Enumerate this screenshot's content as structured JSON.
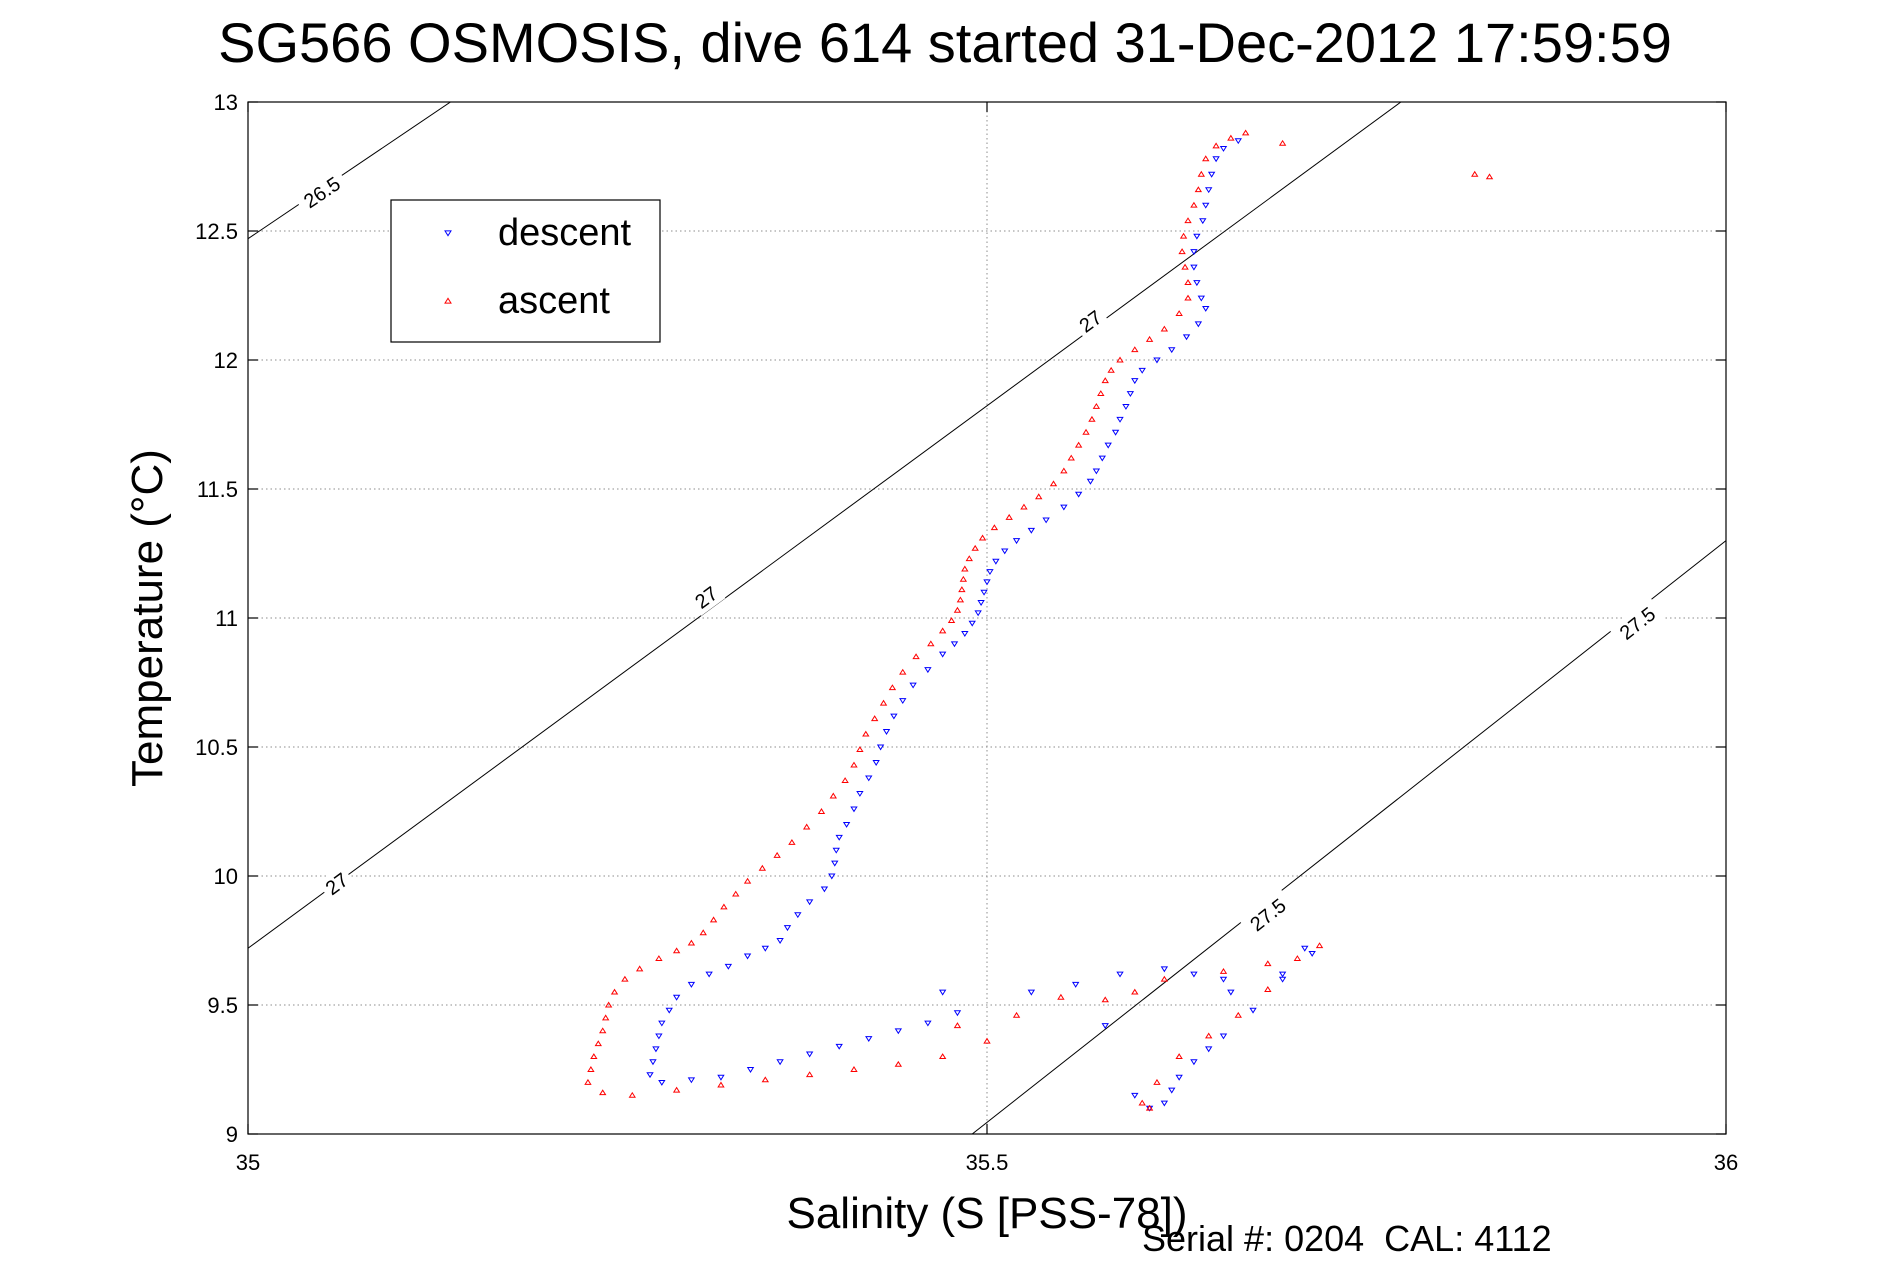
{
  "chart_data": {
    "type": "scatter",
    "title": "SG566 OSMOSIS, dive 614 started 31-Dec-2012 17:59:59",
    "xlabel": "Salinity (S [PSS-78])",
    "ylabel": "Temperature (°C)",
    "xlim": [
      35,
      36
    ],
    "ylim": [
      9,
      13
    ],
    "xticks": [
      35,
      35.5,
      36
    ],
    "xtick_labels": [
      "35",
      "35.5",
      "36"
    ],
    "yticks": [
      9,
      9.5,
      10,
      10.5,
      11,
      11.5,
      12,
      12.5,
      13
    ],
    "ytick_labels": [
      "9",
      "9.5",
      "10",
      "10.5",
      "11",
      "11.5",
      "12",
      "12.5",
      "13"
    ],
    "grid": true,
    "legend_position": "top-left",
    "legend": [
      {
        "label": "descent",
        "marker": "triangle-down",
        "color": "#0000ff"
      },
      {
        "label": "ascent",
        "marker": "triangle-up",
        "color": "#ff0000"
      }
    ],
    "contours": [
      {
        "label": "26.5",
        "points": [
          [
            35.0,
            12.47
          ],
          [
            35.137,
            13.0
          ]
        ],
        "label_positions": [
          [
            35.05,
            12.65
          ]
        ]
      },
      {
        "label": "27",
        "points": [
          [
            35.0,
            9.72
          ],
          [
            35.78,
            13.0
          ]
        ],
        "label_positions": [
          [
            35.06,
            9.97
          ],
          [
            35.31,
            11.08
          ],
          [
            35.57,
            12.15
          ]
        ]
      },
      {
        "label": "27.5",
        "points": [
          [
            35.49,
            9.0
          ],
          [
            36.0,
            11.3
          ]
        ],
        "label_positions": [
          [
            35.69,
            9.85
          ],
          [
            35.94,
            10.98
          ]
        ]
      }
    ],
    "series": [
      {
        "name": "descent",
        "color": "#0000ff",
        "marker": "triangle-down",
        "points": [
          [
            35.67,
            12.85
          ],
          [
            35.66,
            12.82
          ],
          [
            35.655,
            12.78
          ],
          [
            35.652,
            12.72
          ],
          [
            35.65,
            12.66
          ],
          [
            35.648,
            12.6
          ],
          [
            35.646,
            12.54
          ],
          [
            35.642,
            12.48
          ],
          [
            35.64,
            12.42
          ],
          [
            35.64,
            12.36
          ],
          [
            35.642,
            12.3
          ],
          [
            35.645,
            12.24
          ],
          [
            35.648,
            12.2
          ],
          [
            35.643,
            12.14
          ],
          [
            35.635,
            12.09
          ],
          [
            35.625,
            12.04
          ],
          [
            35.615,
            12.0
          ],
          [
            35.605,
            11.96
          ],
          [
            35.6,
            11.92
          ],
          [
            35.597,
            11.87
          ],
          [
            35.594,
            11.82
          ],
          [
            35.59,
            11.77
          ],
          [
            35.587,
            11.72
          ],
          [
            35.582,
            11.67
          ],
          [
            35.578,
            11.62
          ],
          [
            35.574,
            11.57
          ],
          [
            35.57,
            11.53
          ],
          [
            35.562,
            11.48
          ],
          [
            35.552,
            11.43
          ],
          [
            35.54,
            11.38
          ],
          [
            35.53,
            11.34
          ],
          [
            35.52,
            11.3
          ],
          [
            35.512,
            11.26
          ],
          [
            35.506,
            11.22
          ],
          [
            35.502,
            11.18
          ],
          [
            35.5,
            11.14
          ],
          [
            35.498,
            11.1
          ],
          [
            35.496,
            11.06
          ],
          [
            35.494,
            11.02
          ],
          [
            35.49,
            10.98
          ],
          [
            35.485,
            10.94
          ],
          [
            35.478,
            10.9
          ],
          [
            35.47,
            10.86
          ],
          [
            35.46,
            10.8
          ],
          [
            35.45,
            10.74
          ],
          [
            35.443,
            10.68
          ],
          [
            35.437,
            10.62
          ],
          [
            35.432,
            10.56
          ],
          [
            35.428,
            10.5
          ],
          [
            35.425,
            10.44
          ],
          [
            35.42,
            10.38
          ],
          [
            35.414,
            10.32
          ],
          [
            35.41,
            10.26
          ],
          [
            35.405,
            10.2
          ],
          [
            35.4,
            10.15
          ],
          [
            35.398,
            10.1
          ],
          [
            35.397,
            10.05
          ],
          [
            35.395,
            10.0
          ],
          [
            35.39,
            9.95
          ],
          [
            35.38,
            9.9
          ],
          [
            35.372,
            9.85
          ],
          [
            35.365,
            9.8
          ],
          [
            35.36,
            9.75
          ],
          [
            35.35,
            9.72
          ],
          [
            35.338,
            9.69
          ],
          [
            35.325,
            9.65
          ],
          [
            35.312,
            9.62
          ],
          [
            35.3,
            9.58
          ],
          [
            35.29,
            9.53
          ],
          [
            35.285,
            9.48
          ],
          [
            35.28,
            9.43
          ],
          [
            35.278,
            9.38
          ],
          [
            35.276,
            9.33
          ],
          [
            35.274,
            9.28
          ],
          [
            35.272,
            9.23
          ],
          [
            35.28,
            9.2
          ],
          [
            35.3,
            9.21
          ],
          [
            35.32,
            9.22
          ],
          [
            35.34,
            9.25
          ],
          [
            35.36,
            9.28
          ],
          [
            35.38,
            9.31
          ],
          [
            35.4,
            9.34
          ],
          [
            35.42,
            9.37
          ],
          [
            35.44,
            9.4
          ],
          [
            35.46,
            9.43
          ],
          [
            35.48,
            9.47
          ],
          [
            35.47,
            9.55
          ],
          [
            35.53,
            9.55
          ],
          [
            35.56,
            9.58
          ],
          [
            35.59,
            9.62
          ],
          [
            35.62,
            9.64
          ],
          [
            35.64,
            9.62
          ],
          [
            35.66,
            9.6
          ],
          [
            35.7,
            9.62
          ],
          [
            35.72,
            9.7
          ],
          [
            35.7,
            9.6
          ],
          [
            35.68,
            9.48
          ],
          [
            35.66,
            9.38
          ],
          [
            35.65,
            9.33
          ],
          [
            35.64,
            9.28
          ],
          [
            35.63,
            9.22
          ],
          [
            35.625,
            9.17
          ],
          [
            35.62,
            9.12
          ],
          [
            35.61,
            9.1
          ],
          [
            35.6,
            9.15
          ],
          [
            35.58,
            9.42
          ],
          [
            35.665,
            9.55
          ],
          [
            35.715,
            9.72
          ]
        ]
      },
      {
        "name": "ascent",
        "color": "#ff0000",
        "marker": "triangle-up",
        "points": [
          [
            35.675,
            12.88
          ],
          [
            35.665,
            12.86
          ],
          [
            35.655,
            12.83
          ],
          [
            35.648,
            12.78
          ],
          [
            35.645,
            12.72
          ],
          [
            35.643,
            12.66
          ],
          [
            35.64,
            12.6
          ],
          [
            35.636,
            12.54
          ],
          [
            35.633,
            12.48
          ],
          [
            35.632,
            12.42
          ],
          [
            35.634,
            12.36
          ],
          [
            35.636,
            12.3
          ],
          [
            35.636,
            12.24
          ],
          [
            35.63,
            12.18
          ],
          [
            35.62,
            12.12
          ],
          [
            35.61,
            12.08
          ],
          [
            35.6,
            12.04
          ],
          [
            35.59,
            12.0
          ],
          [
            35.584,
            11.96
          ],
          [
            35.58,
            11.92
          ],
          [
            35.577,
            11.87
          ],
          [
            35.574,
            11.82
          ],
          [
            35.571,
            11.77
          ],
          [
            35.567,
            11.72
          ],
          [
            35.562,
            11.67
          ],
          [
            35.557,
            11.62
          ],
          [
            35.552,
            11.57
          ],
          [
            35.545,
            11.52
          ],
          [
            35.535,
            11.47
          ],
          [
            35.525,
            11.43
          ],
          [
            35.515,
            11.39
          ],
          [
            35.505,
            11.35
          ],
          [
            35.497,
            11.31
          ],
          [
            35.492,
            11.27
          ],
          [
            35.488,
            11.23
          ],
          [
            35.485,
            11.19
          ],
          [
            35.484,
            11.15
          ],
          [
            35.483,
            11.11
          ],
          [
            35.482,
            11.07
          ],
          [
            35.48,
            11.03
          ],
          [
            35.476,
            10.99
          ],
          [
            35.47,
            10.95
          ],
          [
            35.462,
            10.9
          ],
          [
            35.452,
            10.85
          ],
          [
            35.443,
            10.79
          ],
          [
            35.436,
            10.73
          ],
          [
            35.43,
            10.67
          ],
          [
            35.424,
            10.61
          ],
          [
            35.418,
            10.55
          ],
          [
            35.414,
            10.49
          ],
          [
            35.41,
            10.43
          ],
          [
            35.404,
            10.37
          ],
          [
            35.396,
            10.31
          ],
          [
            35.388,
            10.25
          ],
          [
            35.378,
            10.19
          ],
          [
            35.368,
            10.13
          ],
          [
            35.358,
            10.08
          ],
          [
            35.348,
            10.03
          ],
          [
            35.338,
            9.98
          ],
          [
            35.33,
            9.93
          ],
          [
            35.322,
            9.88
          ],
          [
            35.315,
            9.83
          ],
          [
            35.308,
            9.78
          ],
          [
            35.3,
            9.74
          ],
          [
            35.29,
            9.71
          ],
          [
            35.278,
            9.68
          ],
          [
            35.265,
            9.64
          ],
          [
            35.255,
            9.6
          ],
          [
            35.248,
            9.55
          ],
          [
            35.244,
            9.5
          ],
          [
            35.242,
            9.45
          ],
          [
            35.24,
            9.4
          ],
          [
            35.237,
            9.35
          ],
          [
            35.234,
            9.3
          ],
          [
            35.232,
            9.25
          ],
          [
            35.23,
            9.2
          ],
          [
            35.24,
            9.16
          ],
          [
            35.26,
            9.15
          ],
          [
            35.29,
            9.17
          ],
          [
            35.32,
            9.19
          ],
          [
            35.35,
            9.21
          ],
          [
            35.38,
            9.23
          ],
          [
            35.41,
            9.25
          ],
          [
            35.44,
            9.27
          ],
          [
            35.47,
            9.3
          ],
          [
            35.5,
            9.36
          ],
          [
            35.52,
            9.46
          ],
          [
            35.55,
            9.53
          ],
          [
            35.58,
            9.52
          ],
          [
            35.6,
            9.55
          ],
          [
            35.62,
            9.6
          ],
          [
            35.66,
            9.63
          ],
          [
            35.69,
            9.66
          ],
          [
            35.71,
            9.68
          ],
          [
            35.725,
            9.73
          ],
          [
            35.69,
            9.56
          ],
          [
            35.67,
            9.46
          ],
          [
            35.65,
            9.38
          ],
          [
            35.63,
            9.3
          ],
          [
            35.615,
            9.2
          ],
          [
            35.61,
            9.1
          ],
          [
            35.605,
            9.12
          ],
          [
            35.48,
            9.42
          ],
          [
            35.84,
            12.71
          ],
          [
            35.83,
            12.72
          ],
          [
            35.7,
            12.84
          ]
        ]
      }
    ]
  },
  "footer": {
    "serial_text": "Serial #: 0204  CAL: 4112"
  }
}
